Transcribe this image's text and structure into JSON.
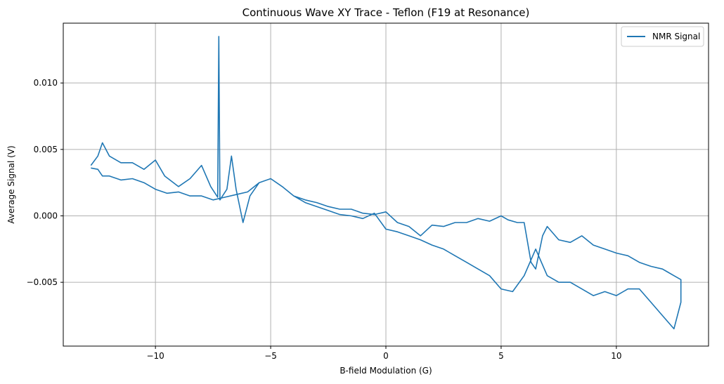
{
  "chart_data": {
    "type": "line",
    "title": "Continuous Wave XY Trace - Teflon (F19 at Resonance)",
    "xlabel": "B-field Modulation (G)",
    "ylabel": "Average Signal (V)",
    "xlim": [
      -14,
      14
    ],
    "ylim": [
      -0.0098,
      0.0145
    ],
    "x_ticks": [
      -10,
      -5,
      0,
      5,
      10
    ],
    "x_tick_labels": [
      "−10",
      "−5",
      "0",
      "5",
      "10"
    ],
    "y_ticks": [
      -0.005,
      0.0,
      0.005,
      0.01
    ],
    "y_tick_labels": [
      "−0.005",
      "0.000",
      "0.005",
      "0.010"
    ],
    "grid": true,
    "legend_position": "top-right",
    "line_color": "#1f77b4",
    "series": [
      {
        "name": "NMR Signal",
        "x": [
          -12.8,
          -12.5,
          -12.3,
          -12.0,
          -11.5,
          -11.0,
          -10.5,
          -10.0,
          -9.6,
          -9.0,
          -8.5,
          -8.0,
          -7.6,
          -7.3,
          -7.25,
          -7.2,
          -6.9,
          -6.7,
          -6.5,
          -6.2,
          -5.9,
          -5.5,
          -5.0,
          -4.5,
          -4.0,
          -3.5,
          -3.0,
          -2.5,
          -2.0,
          -1.5,
          -1.0,
          -0.5,
          0.0,
          0.5,
          1.0,
          1.5,
          2.0,
          2.5,
          3.0,
          3.5,
          4.0,
          4.5,
          5.0,
          5.5,
          6.0,
          6.5,
          7.0,
          7.5,
          8.0,
          8.5,
          9.0,
          9.5,
          10.0,
          10.5,
          11.0,
          11.5,
          12.0,
          12.5,
          12.8,
          12.8,
          12.5,
          12.2,
          12.0,
          11.5,
          11.0,
          10.5,
          10.0,
          9.5,
          9.0,
          8.5,
          8.0,
          7.5,
          7.0,
          6.8,
          6.5,
          6.3,
          6.0,
          5.7,
          5.3,
          5.0,
          4.5,
          4.0,
          3.5,
          3.0,
          2.5,
          2.0,
          1.5,
          1.0,
          0.5,
          0.0,
          -0.5,
          -1.0,
          -1.5,
          -2.0,
          -2.5,
          -3.0,
          -3.5,
          -4.0,
          -4.5,
          -5.0,
          -5.5,
          -6.0,
          -6.5,
          -7.0,
          -7.5,
          -8.0,
          -8.5,
          -9.0,
          -9.5,
          -10.0,
          -10.5,
          -11.0,
          -11.5,
          -12.0,
          -12.3,
          -12.5,
          -12.8
        ],
        "values": [
          0.0038,
          0.0045,
          0.0055,
          0.0045,
          0.004,
          0.004,
          0.0035,
          0.0042,
          0.003,
          0.0022,
          0.0028,
          0.0038,
          0.0022,
          0.0014,
          0.0135,
          0.0012,
          0.002,
          0.0045,
          0.002,
          -0.0005,
          0.0015,
          0.0025,
          0.0028,
          0.0022,
          0.0015,
          0.001,
          0.0007,
          0.0004,
          0.0001,
          0.0,
          -0.0002,
          0.0002,
          -0.001,
          -0.0012,
          -0.0015,
          -0.0018,
          -0.0022,
          -0.0025,
          -0.003,
          -0.0035,
          -0.004,
          -0.0045,
          -0.0055,
          -0.0057,
          -0.0045,
          -0.0025,
          -0.0045,
          -0.005,
          -0.005,
          -0.0055,
          -0.006,
          -0.0057,
          -0.006,
          -0.0055,
          -0.0055,
          -0.0065,
          -0.0075,
          -0.0085,
          -0.0065,
          -0.0048,
          -0.0045,
          -0.0042,
          -0.004,
          -0.0038,
          -0.0035,
          -0.003,
          -0.0028,
          -0.0025,
          -0.0022,
          -0.0015,
          -0.002,
          -0.0018,
          -0.0008,
          -0.0015,
          -0.004,
          -0.0035,
          -0.0005,
          -0.0005,
          -0.0003,
          0.0,
          -0.0004,
          -0.0002,
          -0.0005,
          -0.0005,
          -0.0008,
          -0.0007,
          -0.0015,
          -0.0008,
          -0.0005,
          0.0003,
          0.0001,
          0.0002,
          0.0005,
          0.0005,
          0.0007,
          0.001,
          0.0012,
          0.0015,
          0.0022,
          0.0028,
          0.0025,
          0.0018,
          0.0016,
          0.0014,
          0.0012,
          0.0015,
          0.0015,
          0.0018,
          0.0017,
          0.002,
          0.0025,
          0.0028,
          0.0027,
          0.003,
          0.003,
          0.0035,
          0.0036
        ]
      }
    ]
  }
}
